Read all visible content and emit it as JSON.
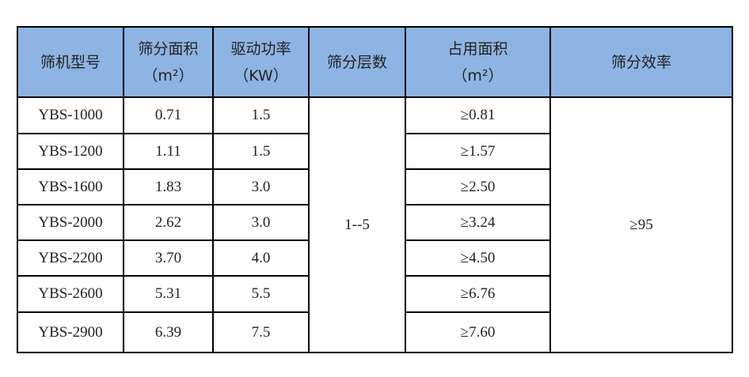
{
  "header_bg": "#8eb4e3",
  "headers": [
    {
      "title": "筛机型号",
      "unit": ""
    },
    {
      "title": "筛分面积",
      "unit": "（m²）"
    },
    {
      "title": "驱动功率",
      "unit": "（KW）"
    },
    {
      "title": "筛分层数",
      "unit": ""
    },
    {
      "title": "占用面积",
      "unit": "（m²）"
    },
    {
      "title": "筛分效率",
      "unit": ""
    }
  ],
  "rows": [
    {
      "model": "YBS-1000",
      "area": "0.71",
      "power": "1.5",
      "footprint": "≥0.81"
    },
    {
      "model": "YBS-1200",
      "area": "1.11",
      "power": "1.5",
      "footprint": "≥1.57"
    },
    {
      "model": "YBS-1600",
      "area": "1.83",
      "power": "3.0",
      "footprint": "≥2.50"
    },
    {
      "model": "YBS-2000",
      "area": "2.62",
      "power": "3.0",
      "footprint": "≥3.24"
    },
    {
      "model": "YBS-2200",
      "area": "3.70",
      "power": "4.0",
      "footprint": "≥4.50"
    },
    {
      "model": "YBS-2600",
      "area": "5.31",
      "power": "5.5",
      "footprint": "≥6.76"
    },
    {
      "model": "YBS-2900",
      "area": "6.39",
      "power": "7.5",
      "footprint": "≥7.60"
    }
  ],
  "layers": "1--5",
  "efficiency": "≥95"
}
